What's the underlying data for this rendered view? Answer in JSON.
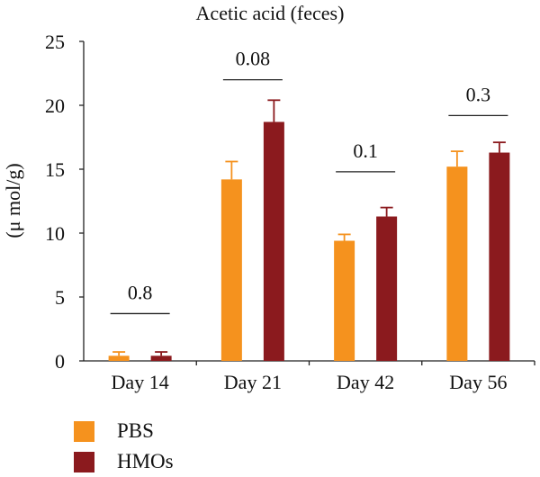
{
  "chart_data": {
    "type": "bar",
    "title": "Acetic acid (feces)",
    "ylabel": "(μ mol/g)",
    "xlabel": "",
    "ylim": [
      0,
      25
    ],
    "yticks": [
      0,
      5,
      10,
      15,
      20,
      25
    ],
    "categories": [
      "Day 14",
      "Day 21",
      "Day 42",
      "Day 56"
    ],
    "series": [
      {
        "name": "PBS",
        "color": "#f5921e",
        "values": [
          0.4,
          14.2,
          9.4,
          15.2
        ],
        "errors": [
          0.3,
          1.4,
          0.5,
          1.2
        ]
      },
      {
        "name": "HMOs",
        "color": "#8b1a1e",
        "values": [
          0.4,
          18.7,
          11.3,
          16.3
        ],
        "errors": [
          0.3,
          1.7,
          0.7,
          0.8
        ]
      }
    ],
    "annotations": [
      {
        "category": "Day 14",
        "text": "0.8",
        "y": 3.7
      },
      {
        "category": "Day 21",
        "text": "0.08",
        "y": 22.0
      },
      {
        "category": "Day 42",
        "text": "0.1",
        "y": 14.8
      },
      {
        "category": "Day 56",
        "text": "0.3",
        "y": 19.2
      }
    ],
    "legend_position": "bottom-left"
  }
}
